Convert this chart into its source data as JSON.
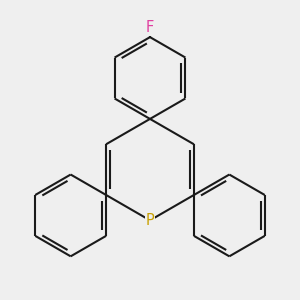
{
  "background_color": "#efefef",
  "bond_color": "#1a1a1a",
  "P_color": "#c8a000",
  "F_color": "#e040a0",
  "bond_width": 1.5,
  "dbo": 0.012,
  "shrink": 0.018,
  "figsize": [
    3.0,
    3.0
  ],
  "dpi": 100,
  "xlim": [
    0.05,
    0.95
  ],
  "ylim": [
    0.05,
    0.95
  ]
}
